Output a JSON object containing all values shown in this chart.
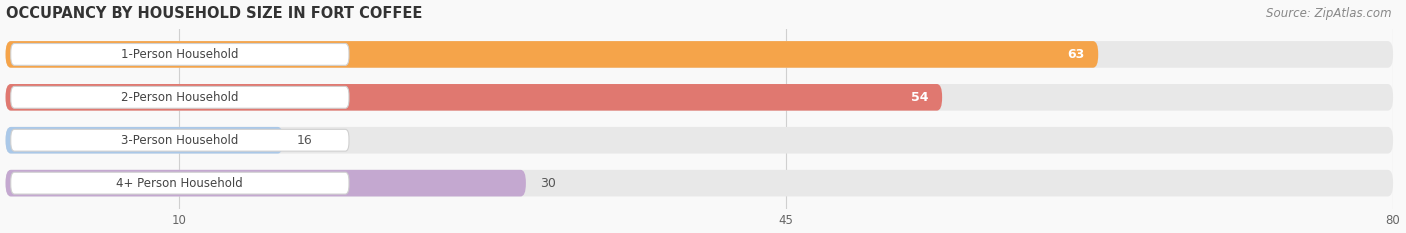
{
  "title": "OCCUPANCY BY HOUSEHOLD SIZE IN FORT COFFEE",
  "source": "Source: ZipAtlas.com",
  "categories": [
    "1-Person Household",
    "2-Person Household",
    "3-Person Household",
    "4+ Person Household"
  ],
  "values": [
    63,
    54,
    16,
    30
  ],
  "bar_colors": [
    "#f5a44a",
    "#e07870",
    "#aac8e8",
    "#c4a8d0"
  ],
  "bar_bg_color": "#e8e8e8",
  "value_inside_bar": [
    true,
    true,
    false,
    false
  ],
  "xlim": [
    0,
    80
  ],
  "xticks": [
    10,
    45,
    80
  ],
  "title_fontsize": 10.5,
  "label_fontsize": 8.5,
  "value_fontsize": 9,
  "source_fontsize": 8.5,
  "bar_height": 0.62,
  "background_color": "#f9f9f9"
}
